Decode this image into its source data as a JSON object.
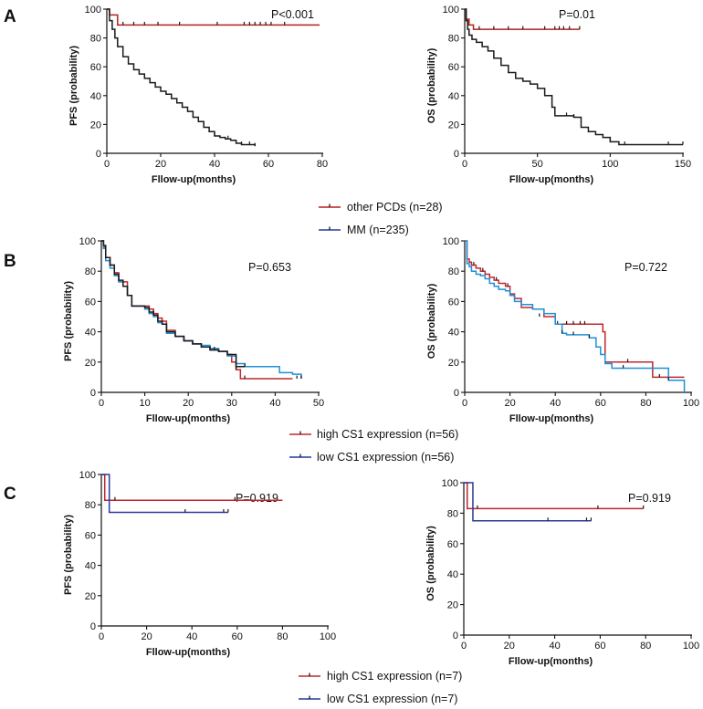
{
  "panels": [
    {
      "letter": "A"
    },
    {
      "letter": "B"
    },
    {
      "letter": "C"
    }
  ],
  "legends": [
    {
      "entries": [
        {
          "label": "other PCDs (n=28)",
          "color": "#b22222"
        },
        {
          "label": "MM (n=235)",
          "color": "#2a3a9a"
        }
      ]
    },
    {
      "entries": [
        {
          "label": "high CS1 expression (n=56)",
          "color": "#c0282d"
        },
        {
          "label": "low CS1 expression (n=56)",
          "color": "#1e3a9a"
        }
      ]
    },
    {
      "entries": [
        {
          "label": "high CS1 expression (n=7)",
          "color": "#c0282d"
        },
        {
          "label": "low CS1 expression (n=7)",
          "color": "#2a3a9a"
        }
      ]
    }
  ],
  "chart_data": [
    {
      "type": "line",
      "panel": "A",
      "title": "",
      "xlabel": "Fllow-up(months)",
      "ylabel": "PFS (probability)",
      "xlim": [
        0,
        80
      ],
      "ylim": [
        0,
        100
      ],
      "xticks": [
        0,
        20,
        40,
        60,
        80
      ],
      "yticks": [
        0,
        20,
        40,
        60,
        80,
        100
      ],
      "annotation": "P<0.001",
      "grid": false,
      "series": [
        {
          "name": "other PCDs (n=28)",
          "color": "#b22222",
          "x": [
            0,
            1,
            4,
            4,
            79
          ],
          "y": [
            100,
            96,
            96,
            89,
            89
          ],
          "censor_x": [
            6,
            10,
            14,
            19,
            27,
            41,
            51,
            53,
            55,
            57,
            59,
            61,
            66
          ],
          "censor_y": [
            89,
            89,
            89,
            89,
            89,
            89,
            89,
            89,
            89,
            89,
            89,
            89,
            89
          ]
        },
        {
          "name": "MM (n=235)",
          "color": "#1a1a1a",
          "x": [
            0,
            1,
            2,
            3,
            4,
            6,
            8,
            10,
            12,
            14,
            16,
            18,
            20,
            22,
            24,
            26,
            28,
            30,
            32,
            34,
            36,
            38,
            40,
            42,
            44,
            46,
            48,
            50,
            52,
            55
          ],
          "y": [
            100,
            92,
            86,
            80,
            74,
            67,
            62,
            58,
            55,
            52,
            49,
            46,
            43,
            41,
            38,
            35,
            32,
            29,
            25,
            22,
            18,
            15,
            12,
            11,
            10,
            9,
            7,
            6,
            6,
            5
          ],
          "censor_x": [
            40,
            45,
            50,
            53,
            55
          ],
          "censor_y": [
            12,
            10,
            6,
            6,
            5
          ]
        }
      ]
    },
    {
      "type": "line",
      "panel": "A",
      "title": "",
      "xlabel": "Fllow-up(months)",
      "ylabel": "OS (probability)",
      "xlim": [
        0,
        150
      ],
      "ylim": [
        0,
        100
      ],
      "xticks": [
        0,
        50,
        100,
        150
      ],
      "yticks": [
        0,
        20,
        40,
        60,
        80,
        100
      ],
      "annotation": "P=0.01",
      "grid": false,
      "series": [
        {
          "name": "other PCDs (n=28)",
          "color": "#b22222",
          "x": [
            0,
            1,
            3,
            3,
            6,
            6,
            79
          ],
          "y": [
            100,
            93,
            93,
            89,
            89,
            86,
            86
          ],
          "censor_x": [
            10,
            20,
            30,
            40,
            55,
            62,
            65,
            68,
            72,
            79
          ],
          "censor_y": [
            86,
            86,
            86,
            86,
            86,
            86,
            86,
            86,
            86,
            86
          ]
        },
        {
          "name": "MM (n=235)",
          "color": "#1a1a1a",
          "x": [
            0,
            1,
            2,
            3,
            5,
            8,
            12,
            16,
            20,
            25,
            30,
            35,
            40,
            45,
            50,
            55,
            60,
            62,
            65,
            70,
            75,
            80,
            85,
            90,
            95,
            100,
            106,
            120,
            135,
            150
          ],
          "y": [
            100,
            92,
            86,
            82,
            79,
            77,
            74,
            71,
            66,
            61,
            56,
            52,
            50,
            48,
            45,
            40,
            32,
            26,
            26,
            26,
            25,
            18,
            15,
            13,
            11,
            8,
            6,
            6,
            6,
            6
          ],
          "censor_x": [
            60,
            70,
            75,
            100,
            110,
            140,
            150
          ],
          "censor_y": [
            32,
            26,
            25,
            8,
            6,
            6,
            6
          ]
        }
      ]
    },
    {
      "type": "line",
      "panel": "B",
      "title": "",
      "xlabel": "Fllow-up(months)",
      "ylabel": "PFS (probability)",
      "xlim": [
        0,
        50
      ],
      "ylim": [
        0,
        100
      ],
      "xticks": [
        0,
        10,
        20,
        30,
        40,
        50
      ],
      "yticks": [
        0,
        20,
        40,
        60,
        80,
        100
      ],
      "annotation": "P=0.653",
      "grid": false,
      "series": [
        {
          "name": "high CS1 expression (n=56)",
          "color": "#c0282d",
          "x": [
            0,
            0.5,
            1,
            2,
            3,
            4,
            5,
            6,
            7,
            8,
            9,
            10,
            11,
            12,
            13,
            14,
            15,
            17,
            19,
            21,
            23,
            25,
            27,
            29,
            30,
            31,
            32,
            35,
            40,
            44
          ],
          "y": [
            100,
            96,
            89,
            84,
            79,
            73,
            73,
            64,
            57,
            57,
            57,
            57,
            55,
            52,
            49,
            47,
            41,
            37,
            34,
            32,
            30,
            28,
            27,
            25,
            20,
            15,
            9,
            9,
            9,
            9
          ],
          "censor_x": [
            12,
            19,
            27,
            31,
            33
          ],
          "censor_y": [
            52,
            34,
            27,
            15,
            9
          ]
        },
        {
          "name": "low CS1 expression (n=56)",
          "color": "#1e90d8",
          "x": [
            0,
            0.5,
            1,
            2,
            3,
            4,
            5,
            6,
            7,
            8,
            9,
            10,
            11,
            12,
            13,
            14,
            15,
            17,
            19,
            21,
            23,
            25,
            27,
            29,
            31,
            33,
            35,
            38,
            41,
            44,
            46
          ],
          "y": [
            100,
            95,
            87,
            82,
            77,
            73,
            70,
            64,
            57,
            57,
            57,
            55,
            52,
            50,
            46,
            45,
            39,
            37,
            34,
            32,
            31,
            29,
            27,
            24,
            19,
            17,
            17,
            17,
            13,
            12,
            9
          ],
          "censor_x": [
            26,
            33,
            45,
            46
          ],
          "censor_y": [
            28,
            17,
            9,
            9
          ]
        },
        {
          "name": "",
          "color": "#1a1a1a",
          "x": [
            0,
            0.5,
            1,
            2,
            3,
            4,
            5,
            6,
            7,
            8,
            9,
            10,
            11,
            12,
            13,
            14,
            15,
            17,
            19,
            21,
            23,
            25,
            27,
            29,
            31,
            33
          ],
          "y": [
            100,
            97,
            89,
            84,
            78,
            74,
            70,
            64,
            57,
            57,
            57,
            56,
            53,
            51,
            47,
            45,
            40,
            37,
            34,
            32,
            30,
            28,
            27,
            25,
            17,
            17
          ],
          "censor_x": [],
          "censor_y": []
        }
      ]
    },
    {
      "type": "line",
      "panel": "B",
      "title": "",
      "xlabel": "Fllow-up(months)",
      "ylabel": "OS (probability)",
      "xlim": [
        0,
        100
      ],
      "ylim": [
        0,
        100
      ],
      "xticks": [
        0,
        20,
        40,
        60,
        80,
        100
      ],
      "yticks": [
        0,
        20,
        40,
        60,
        80,
        100
      ],
      "annotation": "P=0.722",
      "grid": false,
      "series": [
        {
          "name": "high CS1 expression (n=56)",
          "color": "#c0282d",
          "x": [
            0,
            1,
            2,
            3,
            5,
            7,
            9,
            11,
            13,
            15,
            18,
            20,
            22,
            25,
            30,
            35,
            40,
            45,
            50,
            55,
            60,
            61,
            62,
            65,
            70,
            80,
            83,
            86,
            97
          ],
          "y": [
            100,
            88,
            86,
            84,
            82,
            80,
            78,
            76,
            74,
            72,
            70,
            65,
            62,
            56,
            55,
            50,
            45,
            45,
            45,
            45,
            45,
            40,
            20,
            20,
            20,
            20,
            10,
            10,
            10
          ],
          "censor_x": [
            4,
            8,
            14,
            19,
            33,
            41,
            45,
            48,
            51,
            53,
            72,
            86
          ],
          "censor_y": [
            84,
            80,
            74,
            70,
            50,
            45,
            45,
            45,
            45,
            45,
            20,
            10
          ]
        },
        {
          "name": "low CS1 expression (n=56)",
          "color": "#1e90d8",
          "x": [
            0,
            1,
            2,
            3,
            5,
            7,
            9,
            11,
            13,
            15,
            18,
            20,
            22,
            25,
            30,
            35,
            40,
            43,
            45,
            50,
            55,
            58,
            60,
            62,
            65,
            75,
            80,
            90,
            97,
            97
          ],
          "y": [
            100,
            85,
            83,
            80,
            78,
            77,
            75,
            72,
            70,
            68,
            67,
            64,
            60,
            58,
            55,
            52,
            45,
            39,
            38,
            38,
            36,
            30,
            25,
            19,
            16,
            16,
            16,
            8,
            8,
            0
          ],
          "censor_x": [
            43,
            48,
            55,
            70,
            90
          ],
          "censor_y": [
            39,
            38,
            36,
            16,
            8
          ]
        }
      ]
    },
    {
      "type": "line",
      "panel": "C",
      "title": "",
      "xlabel": "Fllow-up(months)",
      "ylabel": "PFS (probability)",
      "xlim": [
        0,
        100
      ],
      "ylim": [
        0,
        100
      ],
      "xticks": [
        0,
        20,
        40,
        60,
        80,
        100
      ],
      "yticks": [
        0,
        20,
        40,
        60,
        80,
        100
      ],
      "annotation": "P=0.919",
      "grid": false,
      "series": [
        {
          "name": "high CS1 expression (n=7)",
          "color": "#c0282d",
          "x": [
            0,
            1.5,
            1.5,
            80
          ],
          "y": [
            100,
            100,
            83,
            83
          ],
          "censor_x": [
            6,
            59
          ],
          "censor_y": [
            83,
            83
          ]
        },
        {
          "name": "low CS1 expression (n=7)",
          "color": "#2a3a9a",
          "x": [
            0,
            3.5,
            3.5,
            56
          ],
          "y": [
            100,
            100,
            75,
            75
          ],
          "censor_x": [
            37,
            54,
            56
          ],
          "censor_y": [
            75,
            75,
            75
          ]
        }
      ]
    },
    {
      "type": "line",
      "panel": "C",
      "title": "",
      "xlabel": "Fllow-up(months)",
      "ylabel": "OS (probability)",
      "xlim": [
        0,
        100
      ],
      "ylim": [
        0,
        100
      ],
      "xticks": [
        0,
        20,
        40,
        60,
        80,
        100
      ],
      "yticks": [
        0,
        20,
        40,
        60,
        80,
        100
      ],
      "annotation": "P=0.919",
      "grid": false,
      "series": [
        {
          "name": "high CS1 expression (n=7)",
          "color": "#c0282d",
          "x": [
            0,
            1.5,
            1.5,
            79
          ],
          "y": [
            100,
            100,
            83,
            83
          ],
          "censor_x": [
            6,
            59,
            79
          ],
          "censor_y": [
            83,
            83,
            83
          ]
        },
        {
          "name": "low CS1 expression (n=7)",
          "color": "#2a3a9a",
          "x": [
            0,
            4,
            4,
            56
          ],
          "y": [
            100,
            100,
            75,
            75
          ],
          "censor_x": [
            37,
            54,
            56
          ],
          "censor_y": [
            75,
            75,
            75
          ]
        }
      ]
    }
  ]
}
